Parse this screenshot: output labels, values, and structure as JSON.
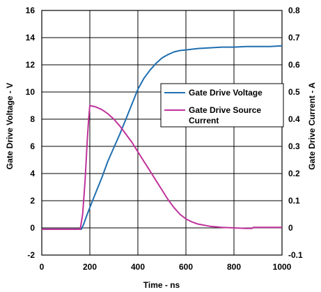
{
  "chart_data": {
    "type": "line",
    "title": "",
    "xlabel": "Time - ns",
    "ylabel_left": "Gate Drive Voltage - V",
    "ylabel_right": "Gate Drive Current - A",
    "xlim": [
      0,
      1000
    ],
    "ylim_left": [
      -2,
      16
    ],
    "ylim_right": [
      -0.1,
      0.8
    ],
    "x_ticks": [
      "0",
      "200",
      "400",
      "600",
      "800",
      "1000"
    ],
    "y_left_ticks": [
      "-2",
      "0",
      "2",
      "4",
      "6",
      "8",
      "10",
      "12",
      "14",
      "16"
    ],
    "y_right_ticks": [
      "-0.1",
      "0",
      "0.1",
      "0.2",
      "0.3",
      "0.4",
      "0.5",
      "0.6",
      "0.7",
      "0.8"
    ],
    "grid": true,
    "legend_position": "center-right",
    "series": [
      {
        "name": "Gate Drive Voltage",
        "axis": "left",
        "color": "#1f6eb0",
        "x": [
          0,
          100,
          165,
          175,
          185,
          200,
          225,
          250,
          275,
          300,
          325,
          350,
          375,
          400,
          425,
          450,
          475,
          500,
          525,
          550,
          575,
          600,
          650,
          700,
          750,
          800,
          850,
          900,
          950,
          1000
        ],
        "y": [
          -0.1,
          -0.1,
          -0.1,
          0.3,
          0.8,
          1.5,
          2.6,
          3.7,
          4.9,
          5.9,
          6.9,
          8.0,
          9.1,
          10.2,
          11.0,
          11.6,
          12.1,
          12.5,
          12.75,
          12.95,
          13.05,
          13.1,
          13.2,
          13.25,
          13.3,
          13.3,
          13.35,
          13.35,
          13.35,
          13.4
        ]
      },
      {
        "name": "Gate Drive Source Current",
        "axis": "right",
        "color": "#c0329a",
        "x": [
          0,
          100,
          160,
          170,
          180,
          190,
          195,
          200,
          225,
          250,
          275,
          300,
          325,
          350,
          375,
          400,
          425,
          450,
          475,
          500,
          525,
          550,
          575,
          600,
          625,
          650,
          700,
          750,
          800,
          850,
          875,
          880,
          900,
          950,
          1000
        ],
        "y": [
          -0.005,
          -0.005,
          -0.005,
          0.05,
          0.17,
          0.33,
          0.4,
          0.45,
          0.445,
          0.435,
          0.42,
          0.4,
          0.375,
          0.345,
          0.315,
          0.28,
          0.245,
          0.21,
          0.175,
          0.14,
          0.105,
          0.075,
          0.05,
          0.033,
          0.022,
          0.014,
          0.006,
          0.002,
          0.0,
          -0.002,
          -0.002,
          0.002,
          0.002,
          0.002,
          0.002
        ]
      }
    ]
  },
  "legend": {
    "items": [
      {
        "label_lines": [
          "Gate Drive Voltage"
        ],
        "color": "#1f6eb0"
      },
      {
        "label_lines": [
          "Gate Drive Source",
          "Current"
        ],
        "color": "#c0329a"
      }
    ]
  }
}
